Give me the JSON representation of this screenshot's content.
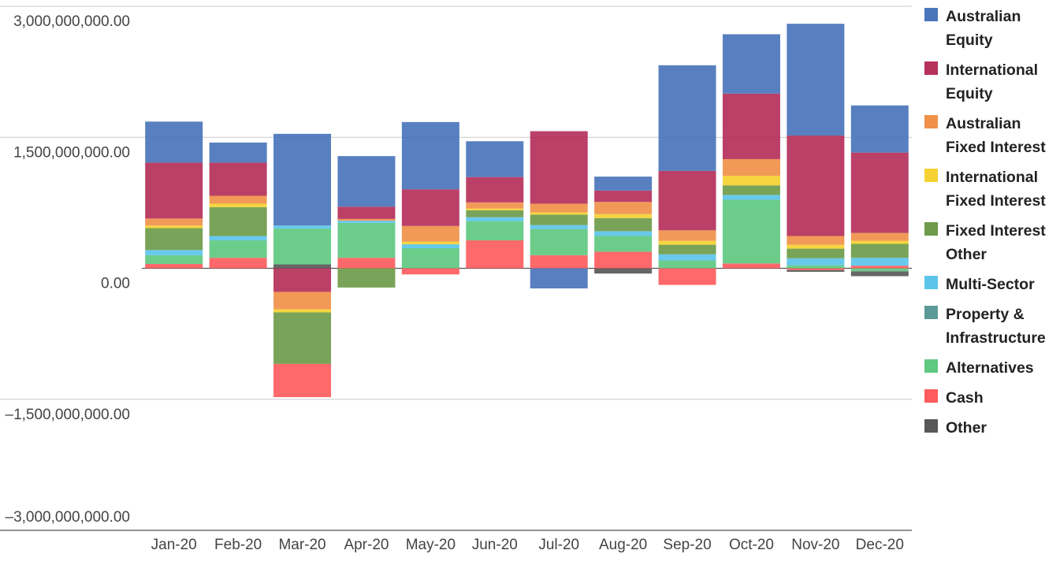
{
  "chart_data": {
    "type": "stacked-bar",
    "categories": [
      "Jan-20",
      "Feb-20",
      "Mar-20",
      "Apr-20",
      "May-20",
      "Jun-20",
      "Jul-20",
      "Aug-20",
      "Sep-20",
      "Oct-20",
      "Nov-20",
      "Dec-20"
    ],
    "series": [
      {
        "name": "Australian Equity",
        "color": "#4a75bb",
        "values": [
          470000000,
          230000000,
          1050000000,
          580000000,
          770000000,
          410000000,
          -230000000,
          160000000,
          1210000000,
          680000000,
          1280000000,
          540000000
        ]
      },
      {
        "name": "International Equity",
        "color": "#b5305a",
        "values": [
          640000000,
          380000000,
          -270000000,
          140000000,
          420000000,
          290000000,
          830000000,
          130000000,
          680000000,
          750000000,
          1150000000,
          920000000
        ]
      },
      {
        "name": "Australian Fixed Interest",
        "color": "#f0914a",
        "values": [
          80000000,
          90000000,
          -200000000,
          20000000,
          180000000,
          70000000,
          100000000,
          140000000,
          120000000,
          190000000,
          100000000,
          90000000
        ]
      },
      {
        "name": "International Fixed Interest",
        "color": "#f5d131",
        "values": [
          30000000,
          40000000,
          -35000000,
          0,
          30000000,
          20000000,
          25000000,
          45000000,
          45000000,
          110000000,
          45000000,
          35000000
        ]
      },
      {
        "name": "Fixed Interest Other",
        "color": "#6e9b4a",
        "values": [
          250000000,
          330000000,
          -590000000,
          -220000000,
          0,
          80000000,
          120000000,
          150000000,
          110000000,
          110000000,
          110000000,
          160000000
        ]
      },
      {
        "name": "Multi-Sector",
        "color": "#5bc4ea",
        "values": [
          60000000,
          50000000,
          35000000,
          25000000,
          45000000,
          45000000,
          45000000,
          55000000,
          70000000,
          55000000,
          80000000,
          90000000
        ]
      },
      {
        "name": "Property & Infrastructure",
        "color": "#5b9a99",
        "values": [
          0,
          0,
          0,
          0,
          0,
          0,
          0,
          0,
          0,
          0,
          0,
          0
        ]
      },
      {
        "name": "Alternatives",
        "color": "#5fc981",
        "values": [
          100000000,
          200000000,
          410000000,
          400000000,
          230000000,
          220000000,
          300000000,
          180000000,
          90000000,
          730000000,
          35000000,
          -35000000
        ]
      },
      {
        "name": "Cash",
        "color": "#fe5c5e",
        "values": [
          50000000,
          120000000,
          -380000000,
          120000000,
          -70000000,
          320000000,
          150000000,
          190000000,
          -190000000,
          55000000,
          -20000000,
          30000000
        ]
      },
      {
        "name": "Other",
        "color": "#585858",
        "values": [
          0,
          0,
          45000000,
          0,
          0,
          0,
          0,
          -60000000,
          0,
          0,
          -20000000,
          -55000000
        ]
      }
    ],
    "ylim": [
      -3000000000,
      3000000000
    ],
    "yticks": [
      {
        "value": -3000000000,
        "label": "–3,000,000,000.00"
      },
      {
        "value": -1500000000,
        "label": "–1,500,000,000.00"
      },
      {
        "value": 0,
        "label": "0.00"
      },
      {
        "value": 1500000000,
        "label": "1,500,000,000.00"
      },
      {
        "value": 3000000000,
        "label": "3,000,000,000.00"
      }
    ],
    "grid": true,
    "legend": "right"
  }
}
